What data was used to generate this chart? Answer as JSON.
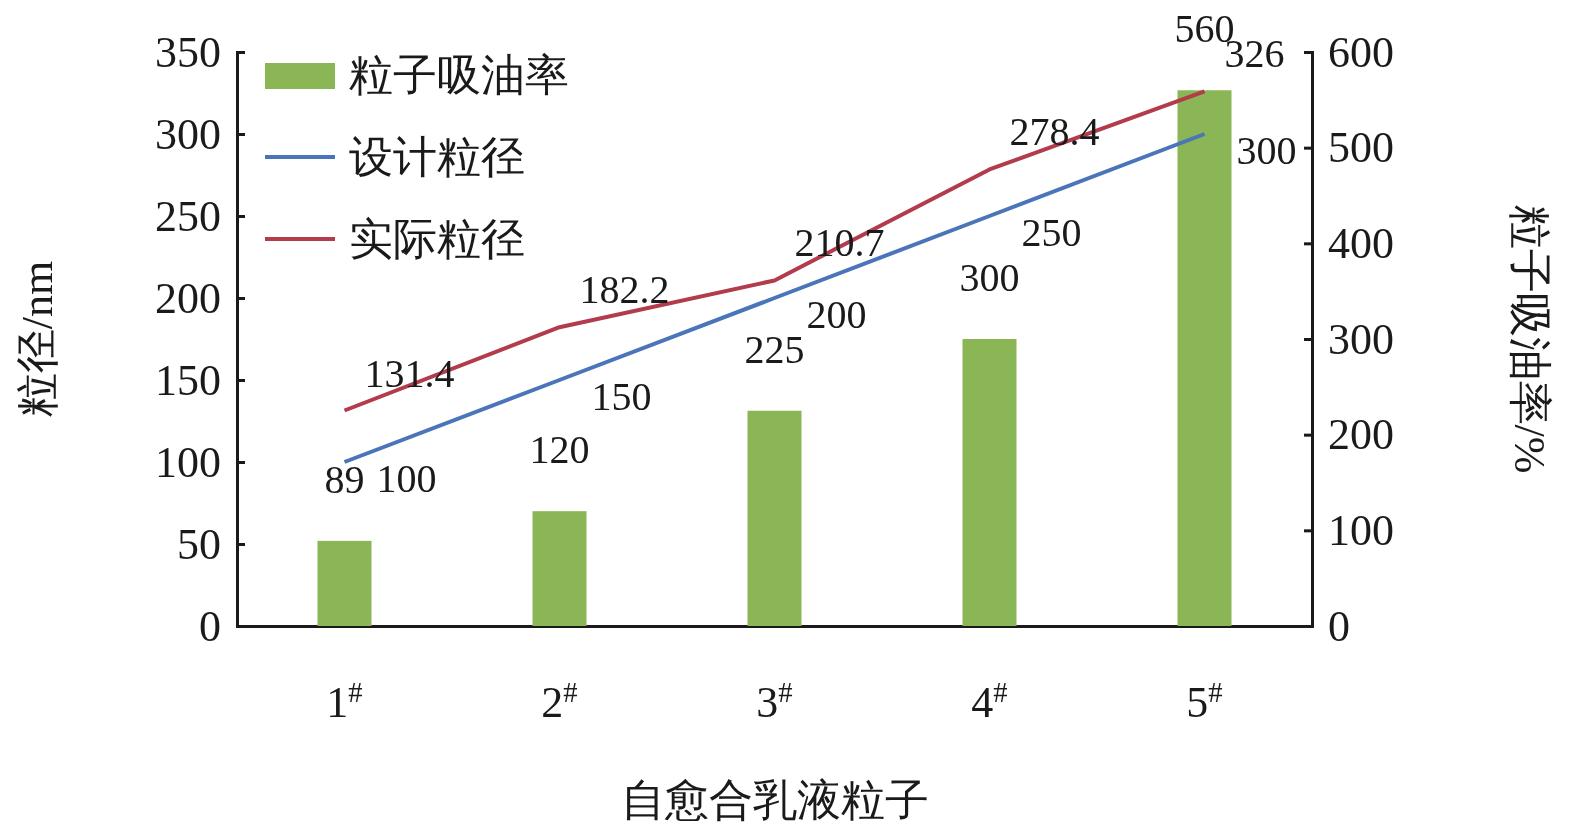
{
  "chart_data": {
    "type": "bar",
    "xlabel": "自愈合乳液粒子",
    "ylabel": "粒径/nm",
    "y2label": "粒子吸油率/%",
    "categories": [
      "1$^{#}$",
      "2$^{#}$",
      "3$^{#}$",
      "4$^{#}$",
      "5$^{#}$"
    ],
    "series": [
      {
        "name": "粒子吸油率",
        "axis": "y2",
        "color": "#8ab656",
        "values": [
          89,
          120,
          225,
          300,
          560
        ]
      },
      {
        "name": "设计粒径",
        "type": "line",
        "color": "#4a75b8",
        "values": [
          100,
          150,
          200,
          250,
          300
        ]
      },
      {
        "name": "实际粒径",
        "type": "line",
        "color": "#b23b4c",
        "values": [
          131.4,
          182.2,
          210.7,
          278.4,
          326
        ]
      }
    ],
    "ylim": [
      0,
      350
    ],
    "yticks": [
      0,
      50,
      100,
      150,
      200,
      250,
      300,
      350
    ],
    "y2lim": [
      0,
      600
    ],
    "y2ticks": [
      0,
      100,
      200,
      300,
      400,
      500,
      600
    ],
    "data_labels": true,
    "legend": "top left",
    "grid": false,
    "marker": "none",
    "line_style": "solid"
  }
}
